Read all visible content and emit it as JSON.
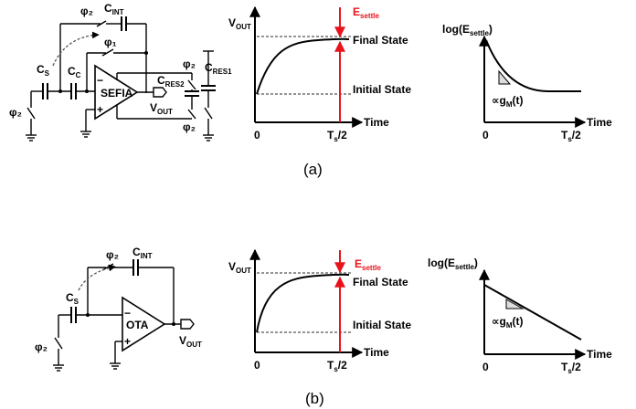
{
  "panel_a": {
    "caption": "(a)",
    "circuit": {
      "phi2_top": "φ₂",
      "cint": {
        "main": "C",
        "sub": "INT"
      },
      "phi1": "φ₁",
      "cs": {
        "main": "C",
        "sub": "S"
      },
      "cc": {
        "main": "C",
        "sub": "C"
      },
      "amp": "SEFIA",
      "minus": "−",
      "plus": "+",
      "phi2_in": "φ₂",
      "cres2": {
        "main": "C",
        "sub": "RES2"
      },
      "cres1": {
        "main": "C",
        "sub": "RES1"
      },
      "phi2_res_top": "φ₂",
      "phi2_res_bot": "φ₂",
      "vout": {
        "main": "V",
        "sub": "OUT"
      }
    },
    "plot_vout": {
      "ylabel": {
        "main": "V",
        "sub": "OUT"
      },
      "xlabel": "Time",
      "x0": "0",
      "ts": {
        "main": "T",
        "sub": "s",
        "tail": "/2"
      },
      "esettle": {
        "main": "E",
        "sub": "settle"
      },
      "final_state": "Final State",
      "initial_state": "Initial State",
      "colors": {
        "marker": "#e8121b"
      }
    },
    "plot_log": {
      "ylabel": {
        "pre": "log(E",
        "sub": "settle",
        "post": ")"
      },
      "xlabel": "Time",
      "x0": "0",
      "ts": {
        "main": "T",
        "sub": "s",
        "tail": "/2"
      },
      "slope": {
        "pre": "∝g",
        "sub": "M",
        "post": "(t)"
      }
    }
  },
  "panel_b": {
    "caption": "(b)",
    "circuit": {
      "phi2_top": "φ₂",
      "cint": {
        "main": "C",
        "sub": "INT"
      },
      "cs": {
        "main": "C",
        "sub": "S"
      },
      "amp": "OTA",
      "minus": "−",
      "plus": "+",
      "phi2_in": "φ₂",
      "vout": {
        "main": "V",
        "sub": "OUT"
      }
    },
    "plot_vout": {
      "ylabel": {
        "main": "V",
        "sub": "OUT"
      },
      "xlabel": "Time",
      "x0": "0",
      "ts": {
        "main": "T",
        "sub": "s",
        "tail": "/2"
      },
      "esettle": {
        "main": "E",
        "sub": "settle"
      },
      "final_state": "Final State",
      "initial_state": "Initial State",
      "colors": {
        "marker": "#e8121b"
      }
    },
    "plot_log": {
      "ylabel": {
        "pre": "log(E",
        "sub": "settle",
        "post": ")"
      },
      "xlabel": "Time",
      "x0": "0",
      "ts": {
        "main": "T",
        "sub": "s",
        "tail": "/2"
      },
      "slope": {
        "pre": "∝g",
        "sub": "M",
        "post": "(t)"
      }
    }
  }
}
